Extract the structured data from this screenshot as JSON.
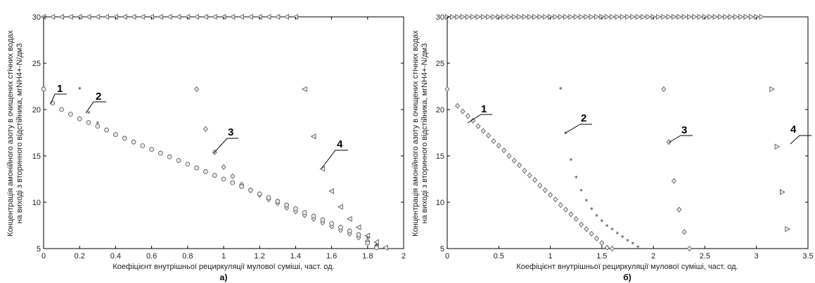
{
  "chart_data": [
    {
      "type": "scatter",
      "panel_label": "а)",
      "xlabel": "Коефіцієнт внутрішньої рециркуляції мулової суміші, част. од.",
      "ylabel_line1": "Концентрація амонійного азоту в очищених стічних водах",
      "ylabel_line2": "на виході з вторинного відстійника, мгNH4+-N/дм3",
      "xlim": [
        0,
        2
      ],
      "ylim": [
        5,
        30
      ],
      "xticks": [
        0,
        0.2,
        0.4,
        0.6,
        0.8,
        1,
        1.2,
        1.4,
        1.6,
        1.8,
        2
      ],
      "xticklabels": [
        "0",
        "0.2",
        "0.4",
        "0.6",
        "0.8",
        "1",
        "1.2",
        "1.4",
        "1.6",
        "1.8",
        "2"
      ],
      "yticks": [
        5,
        10,
        15,
        20,
        25,
        30
      ],
      "series": [
        {
          "name": "1",
          "marker": "circle",
          "x": [
            0,
            0.05,
            0.1,
            0.15,
            0.2,
            0.25,
            0.3,
            0.35,
            0.4,
            0.45,
            0.5,
            0.55,
            0.6,
            0.65,
            0.7,
            0.75,
            0.8,
            0.85,
            0.9,
            0.95,
            1.0,
            1.05,
            1.1,
            1.15,
            1.2,
            1.25,
            1.3,
            1.35,
            1.4,
            1.45,
            1.5,
            1.55,
            1.6,
            1.65,
            1.7,
            1.75,
            1.8,
            1.85
          ],
          "y": [
            22.2,
            20.7,
            20.0,
            19.5,
            19.0,
            18.6,
            18.2,
            17.8,
            17.3,
            16.9,
            16.5,
            16.1,
            15.7,
            15.3,
            14.9,
            14.5,
            14.1,
            13.7,
            13.3,
            12.9,
            12.5,
            12.1,
            11.7,
            11.3,
            10.9,
            10.5,
            10.1,
            9.7,
            9.3,
            8.9,
            8.5,
            8.1,
            7.7,
            7.3,
            6.9,
            6.5,
            5.6,
            5.1
          ]
        },
        {
          "name": "2",
          "marker": "star",
          "x": [
            0.2,
            0.25,
            0.3,
            0.35,
            0.4,
            0.45,
            0.5,
            0.55,
            0.6,
            0.65,
            0.7,
            0.75,
            0.8,
            0.85,
            0.9,
            0.95,
            1.0,
            1.05,
            1.1,
            1.15,
            1.2,
            1.25,
            1.3,
            1.35,
            1.4,
            1.45,
            1.5,
            1.55,
            1.6,
            1.65,
            1.7,
            1.75,
            1.8,
            1.85
          ],
          "y": [
            22.2,
            19.6,
            18.5,
            17.8,
            17.3,
            16.9,
            16.5,
            16.1,
            15.7,
            15.3,
            14.9,
            14.5,
            14.1,
            13.7,
            13.3,
            12.9,
            12.5,
            12.1,
            11.7,
            11.3,
            10.9,
            10.5,
            10.1,
            9.7,
            9.3,
            8.9,
            8.5,
            8.1,
            7.7,
            7.3,
            6.9,
            6.5,
            6.1,
            5.3
          ]
        },
        {
          "name": "3",
          "marker": "diamond",
          "x": [
            0.85,
            0.9,
            0.95,
            1.0,
            1.05,
            1.1,
            1.15,
            1.2,
            1.25,
            1.3,
            1.35,
            1.4,
            1.45,
            1.5,
            1.55,
            1.6,
            1.65,
            1.7,
            1.75,
            1.8,
            1.85
          ],
          "y": [
            22.2,
            17.9,
            15.4,
            13.8,
            12.8,
            11.9,
            11.3,
            10.8,
            10.3,
            9.9,
            9.4,
            9.0,
            8.6,
            8.2,
            7.8,
            7.4,
            7.0,
            6.6,
            6.2,
            5.8,
            5.3
          ]
        },
        {
          "name": "4",
          "marker": "triangle-left",
          "x": [
            1.45,
            1.5,
            1.55,
            1.6,
            1.65,
            1.7,
            1.75,
            1.8,
            1.85,
            1.9
          ],
          "y": [
            22.2,
            17.1,
            13.6,
            11.2,
            9.5,
            8.2,
            7.3,
            6.4,
            5.7,
            5.1
          ]
        }
      ],
      "top_row": {
        "marker": "triangle-left",
        "y": 30,
        "x_start": 0,
        "x_end": 1.4,
        "x_step": 0.05
      }
    },
    {
      "type": "scatter",
      "panel_label": "б)",
      "xlabel": "Коефіцієнт внутрішньої рециркуляції мулової суміші, част. од.",
      "ylabel_line1": "Концентрація амонійного азоту в очищених стічних водах",
      "ylabel_line2": "на виході з вторинного відстійника, мгNH4+-N/дм3",
      "xlim": [
        0,
        3.5
      ],
      "ylim": [
        5,
        30
      ],
      "xticks": [
        0,
        0.5,
        1,
        1.5,
        2,
        2.5,
        3,
        3.5
      ],
      "xticklabels": [
        "0",
        "0.5",
        "1",
        "1.5",
        "2",
        "2.5",
        "3",
        "3.5"
      ],
      "yticks": [
        5,
        10,
        15,
        20,
        25,
        30
      ],
      "series": [
        {
          "name": "1",
          "marker": "diamond",
          "x": [
            0,
            0.1,
            0.15,
            0.2,
            0.25,
            0.3,
            0.35,
            0.4,
            0.45,
            0.5,
            0.55,
            0.6,
            0.65,
            0.7,
            0.75,
            0.8,
            0.85,
            0.9,
            0.95,
            1.0,
            1.05,
            1.1,
            1.15,
            1.2,
            1.25,
            1.3,
            1.35,
            1.4,
            1.45,
            1.5,
            1.55,
            1.6,
            1.65,
            1.7,
            1.75,
            1.8,
            1.85
          ],
          "y": [
            22.2,
            20.4,
            19.8,
            19.3,
            18.8,
            18.2,
            17.7,
            17.2,
            16.6,
            16.1,
            15.6,
            15.0,
            14.5,
            14.0,
            13.4,
            12.9,
            12.4,
            11.8,
            11.3,
            10.8,
            10.3,
            9.7,
            9.2,
            8.7,
            8.2,
            7.6,
            7.1,
            6.6,
            6.1,
            5.6,
            5.1,
            5.0,
            4.9,
            4.8,
            4.7,
            4.6,
            4.5
          ]
        },
        {
          "name": "2",
          "marker": "star",
          "x": [
            1.1,
            1.15,
            1.2,
            1.25,
            1.3,
            1.35,
            1.4,
            1.45,
            1.5,
            1.55,
            1.6,
            1.65,
            1.7,
            1.75,
            1.8,
            1.85
          ],
          "y": [
            22.2,
            17.4,
            14.5,
            12.6,
            11.2,
            10.1,
            9.2,
            8.5,
            7.9,
            7.4,
            7.0,
            6.6,
            6.2,
            5.8,
            5.5,
            5.1
          ]
        },
        {
          "name": "3",
          "marker": "diamond",
          "x": [
            2.1,
            2.15,
            2.2,
            2.25,
            2.3,
            2.35
          ],
          "y": [
            22.2,
            16.5,
            12.3,
            9.2,
            6.8,
            5.0
          ]
        },
        {
          "name": "4",
          "marker": "triangle-right",
          "x": [
            3.15,
            3.2,
            3.25,
            3.3
          ],
          "y": [
            22.2,
            16.0,
            11.1,
            7.1
          ]
        }
      ],
      "top_row": {
        "marker": "triangle-right",
        "y": 30,
        "x_start": 0,
        "x_end": 3.05,
        "x_step": 0.05
      }
    }
  ],
  "callouts_a": [
    "1",
    "2",
    "3",
    "4"
  ],
  "callouts_b": [
    "1",
    "2",
    "3",
    "4"
  ]
}
